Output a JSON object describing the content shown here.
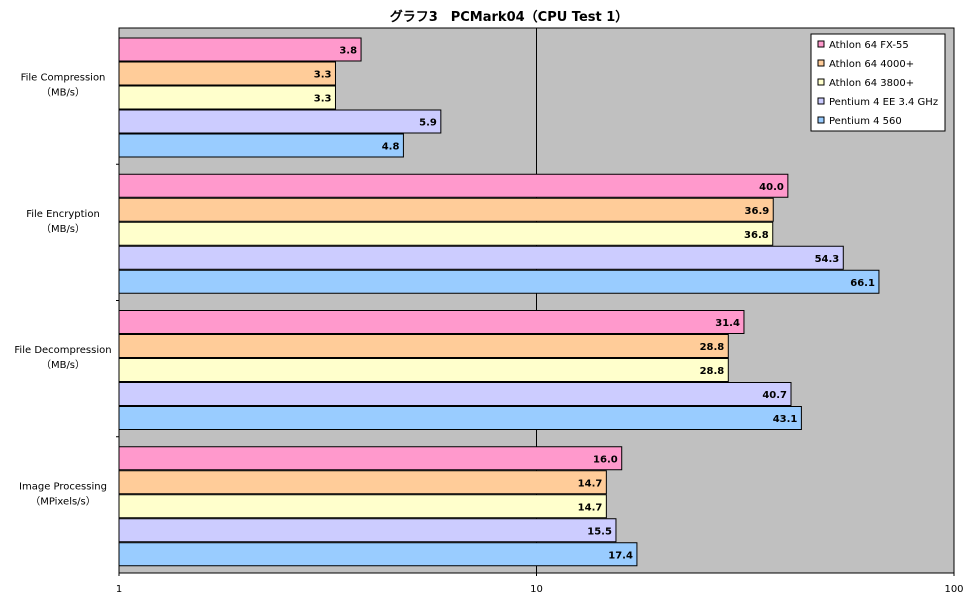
{
  "chart_data": {
    "type": "bar",
    "orientation": "horizontal",
    "title": "グラフ3　PCMark04（CPU Test 1）",
    "xscale": "log",
    "xlim": [
      1,
      100
    ],
    "x_ticks": [
      "1",
      "10",
      "100"
    ],
    "grid": "vertical at major ticks",
    "background": "#c0c0c0",
    "legend_position": "top-right",
    "categories": [
      {
        "line1": "File Compression",
        "line2": "（MB/s）"
      },
      {
        "line1": "File Encryption",
        "line2": "（MB/s）"
      },
      {
        "line1": "File Decompression",
        "line2": "（MB/s）"
      },
      {
        "line1": "Image Processing",
        "line2": "（MPixels/s）"
      }
    ],
    "series": [
      {
        "name": "Athlon 64 FX-55",
        "color": "#ff99cc",
        "values": [
          3.8,
          40.0,
          31.4,
          16.0
        ],
        "labels": [
          "3.8",
          "40.0",
          "31.4",
          "16.0"
        ]
      },
      {
        "name": "Athlon 64 4000+",
        "color": "#ffcc99",
        "values": [
          3.3,
          36.9,
          28.8,
          14.7
        ],
        "labels": [
          "3.3",
          "36.9",
          "28.8",
          "14.7"
        ]
      },
      {
        "name": "Athlon 64 3800+",
        "color": "#ffffcc",
        "values": [
          3.3,
          36.8,
          28.8,
          14.7
        ],
        "labels": [
          "3.3",
          "36.8",
          "28.8",
          "14.7"
        ]
      },
      {
        "name": "Pentium 4 EE 3.4 GHz",
        "color": "#ccccff",
        "values": [
          5.9,
          54.3,
          40.7,
          15.5
        ],
        "labels": [
          "5.9",
          "54.3",
          "40.7",
          "15.5"
        ]
      },
      {
        "name": "Pentium 4 560",
        "color": "#99ccff",
        "values": [
          4.8,
          66.1,
          43.1,
          17.4
        ],
        "labels": [
          "4.8",
          "66.1",
          "43.1",
          "17.4"
        ]
      }
    ]
  }
}
